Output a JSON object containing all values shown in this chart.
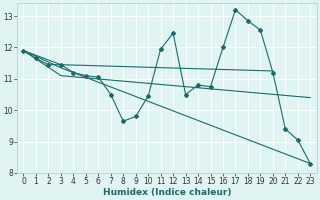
{
  "xlabel": "Humidex (Indice chaleur)",
  "background_color": "#e0f4f4",
  "grid_color": "#ffffff",
  "line_color": "#1a6b6b",
  "xlim": [
    -0.5,
    23.5
  ],
  "ylim": [
    8,
    13.4
  ],
  "xticks": [
    0,
    1,
    2,
    3,
    4,
    5,
    6,
    7,
    8,
    9,
    10,
    11,
    12,
    13,
    14,
    15,
    16,
    17,
    18,
    19,
    20,
    21,
    22,
    23
  ],
  "yticks": [
    8,
    9,
    10,
    11,
    12,
    13
  ],
  "series_main": {
    "x": [
      0,
      1,
      2,
      3,
      4,
      5,
      6,
      7,
      8,
      9,
      10,
      11,
      12,
      13,
      14,
      15,
      16,
      17,
      18,
      19,
      20,
      21,
      22,
      23
    ],
    "y": [
      11.9,
      11.65,
      11.45,
      11.45,
      11.2,
      11.1,
      11.05,
      10.5,
      9.65,
      9.8,
      10.45,
      11.95,
      12.45,
      10.5,
      10.8,
      10.75,
      12.0,
      13.2,
      12.85,
      12.55,
      11.2,
      9.4,
      9.05,
      8.3
    ]
  },
  "trend_lines": [
    {
      "x": [
        0,
        3,
        20
      ],
      "y": [
        11.9,
        11.45,
        11.25
      ]
    },
    {
      "x": [
        0,
        3,
        23
      ],
      "y": [
        11.9,
        11.1,
        10.4
      ]
    },
    {
      "x": [
        0,
        3,
        23
      ],
      "y": [
        11.9,
        11.35,
        8.3
      ]
    }
  ]
}
